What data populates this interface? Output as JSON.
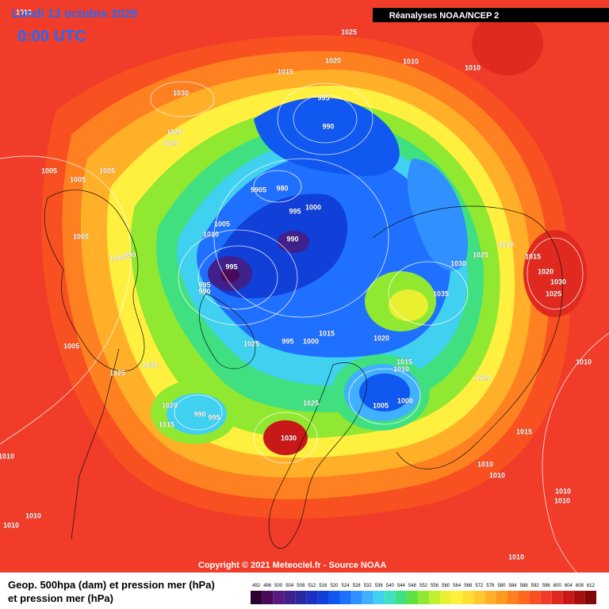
{
  "header": {
    "date": "Lundi 13 octobre 2025",
    "time": "0:00 UTC",
    "source_banner": "Réanalyses NOAA/NCEP 2"
  },
  "copyright": "Copyright © 2021 Meteociel.fr - Source NOAA",
  "legend": {
    "title_lines": [
      "Geop. 500hpa (dam) et pression mer (hPa)",
      "et pression mer (hPa)"
    ],
    "scale": [
      492,
      496,
      500,
      504,
      508,
      512,
      516,
      520,
      524,
      528,
      532,
      536,
      540,
      544,
      548,
      552,
      556,
      560,
      564,
      568,
      572,
      576,
      580,
      584,
      588,
      592,
      596,
      600,
      604,
      608,
      612
    ],
    "colors": [
      "#2a0030",
      "#4a0a5a",
      "#5a1a80",
      "#40208a",
      "#2a2aa0",
      "#1a30c0",
      "#1040d8",
      "#1058f0",
      "#2070ff",
      "#3090ff",
      "#40b0ff",
      "#40d0f0",
      "#40e0c0",
      "#40e080",
      "#60e040",
      "#90e830",
      "#c0f030",
      "#e8f030",
      "#fff040",
      "#ffe030",
      "#ffc830",
      "#ffb028",
      "#ff9a20",
      "#ff8020",
      "#ff6820",
      "#f85020",
      "#f03c28",
      "#e02a20",
      "#c81818",
      "#a81010",
      "#800808"
    ]
  },
  "isobar_labels": [
    1010,
    1025,
    1020,
    1010,
    1010,
    1015,
    1030,
    995,
    990,
    1025,
    1020,
    1005,
    1005,
    1005,
    9905,
    980,
    995,
    1000,
    1005,
    1010,
    1005,
    990,
    1010,
    1025,
    1030,
    1015,
    1020,
    1030,
    995,
    1000,
    990,
    995,
    990,
    1035,
    1025,
    1015,
    995,
    1000,
    1020,
    1025,
    1005,
    1030,
    1025,
    1015,
    1010,
    1010,
    1020,
    1025,
    1000,
    1005,
    1020,
    990,
    995,
    1015,
    1030,
    1015,
    1010,
    1010,
    1010,
    1010,
    1010,
    1010,
    1010,
    1010
  ]
}
